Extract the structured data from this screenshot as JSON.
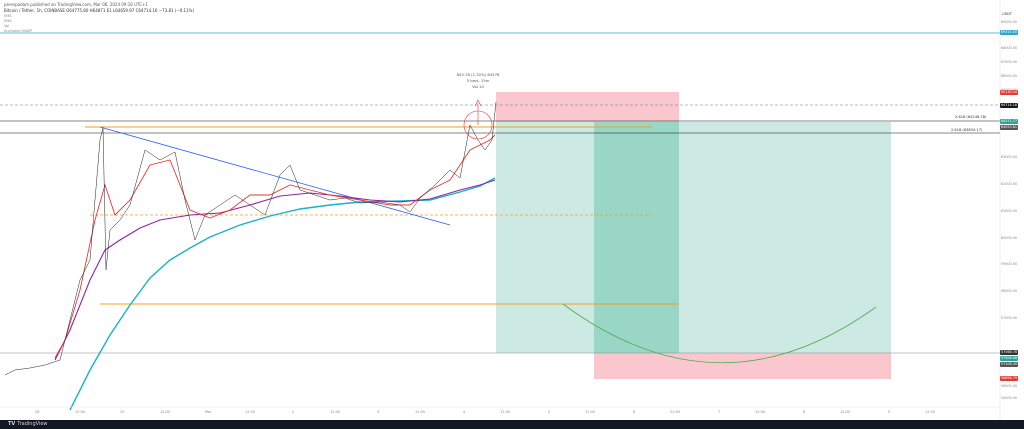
{
  "header": {
    "published_line": "perespadam published on TradingView.com, Mar 06, 2024 09:16 UTC+1",
    "ohlc_line": "Bitcoin / Tether, 1h, COINBASE  O64775.80  H64871.61  L64659.97  C64714.16  −73.81 (−0.11%)",
    "indicator_1": "EMA",
    "indicator_2": "EMA",
    "indicator_3": "Vol",
    "indicator_4": "Anchored VWAP"
  },
  "axis": {
    "currency": "USDT",
    "price_labels": [
      "69000.00",
      "68000.00",
      "67000.00",
      "66000.00",
      "65000.00",
      "63000.00",
      "62000.00",
      "61000.00",
      "60000.00",
      "59000.00",
      "58000.00",
      "57000.00",
      "56000.00",
      "55000.00"
    ],
    "time_labels": [
      "28",
      "12:00",
      "29",
      "12:00",
      "Mar",
      "12:00",
      "2",
      "12:00",
      "3",
      "12:00",
      "4",
      "12:00",
      "5",
      "12:00",
      "6",
      "12:00",
      "7",
      "12:00",
      "8",
      "12:00",
      "9",
      "12:00"
    ]
  },
  "price_tags": [
    {
      "text": "69315.00",
      "color": "#2aa9cf"
    },
    {
      "text": "65130.44",
      "color": "#e53935"
    },
    {
      "text": "64714.16",
      "color": "#131722"
    },
    {
      "text": "64371.77",
      "color": "#26a69a"
    },
    {
      "text": "64053.81",
      "color": "#555555"
    },
    {
      "text": "57568.78",
      "color": "#333333"
    },
    {
      "text": "57506.06",
      "color": "#26a69a"
    },
    {
      "text": "57108.39",
      "color": "#555555"
    },
    {
      "text": "56696.79",
      "color": "#e53935"
    }
  ],
  "fib": {
    "level_1": "2.618 (64248.78)",
    "level_2": "2.618 (63854.17)"
  },
  "measure": {
    "line1": "843.78 (1.32%) 84378",
    "line2": "5 bars, 15m",
    "line3": "Vol 10"
  },
  "footer": {
    "brand": "TradingView"
  },
  "chart_data": {
    "type": "line",
    "title": "",
    "xlabel": "",
    "ylabel": "",
    "ylim": [
      54700,
      69800
    ],
    "x": [
      "28",
      "12:00",
      "29",
      "12:00",
      "Mar",
      "12:00",
      "2",
      "12:00",
      "3",
      "12:00",
      "4",
      "12:00",
      "5",
      "12:00",
      "6"
    ],
    "series": [
      {
        "values": [
          56800,
          57300,
          59000,
          63200,
          61500,
          62000,
          62500,
          61600,
          62100,
          62300,
          62050,
          61900,
          62200,
          63000,
          64700
        ]
      },
      {
        "values": [
          56900,
          57400,
          58800,
          60500,
          61200,
          61700,
          62000,
          62100,
          62150,
          62100,
          62000,
          62050,
          62200,
          62500,
          63000
        ]
      },
      {
        "values": [
          55000,
          56500,
          58000,
          59500,
          60500,
          61100,
          61500,
          61800,
          62000,
          62000,
          62000,
          62100,
          62250,
          62450,
          62800
        ]
      }
    ]
  }
}
